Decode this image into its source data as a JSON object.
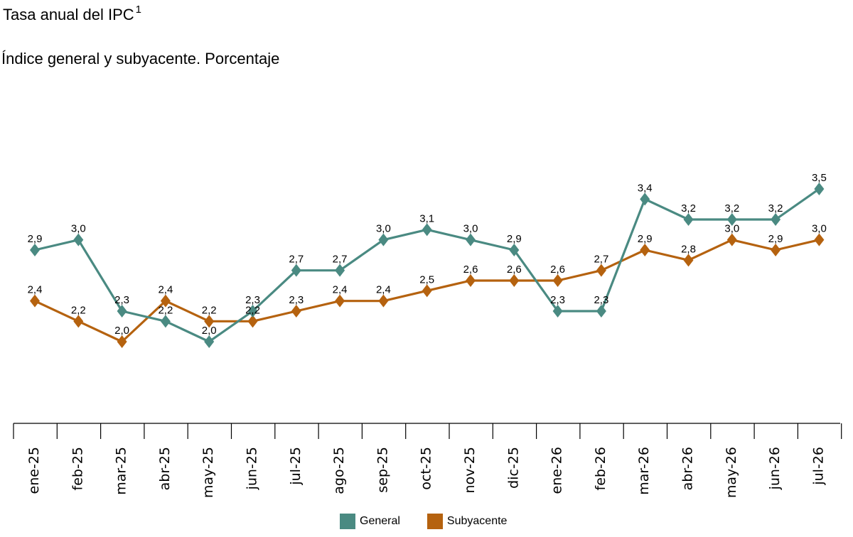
{
  "header": {
    "title": "Tasa anual del IPC",
    "title_footnote": "1",
    "subtitle": "Índice general y subyacente. Porcentaje"
  },
  "colors": {
    "general": "#4a8a82",
    "subyacente": "#b5620f"
  },
  "chart_data": {
    "type": "line",
    "title": "Tasa anual del IPC",
    "subtitle": "Índice general y subyacente. Porcentaje",
    "categories": [
      "ene-25",
      "feb-25",
      "mar-25",
      "abr-25",
      "may-25",
      "jun-25",
      "jul-25",
      "ago-25",
      "sep-25",
      "oct-25",
      "nov-25",
      "dic-25",
      "ene-26",
      "feb-26",
      "mar-26",
      "abr-26",
      "may-26",
      "jun-26",
      "jul-26"
    ],
    "series": [
      {
        "name": "General",
        "color": "#4a8a82",
        "values": [
          2.9,
          3.0,
          2.3,
          2.2,
          2.0,
          2.3,
          2.7,
          2.7,
          3.0,
          3.1,
          3.0,
          2.9,
          2.3,
          2.3,
          3.4,
          3.2,
          3.2,
          3.2,
          3.5
        ],
        "labels": [
          "2,9",
          "3,0",
          "2,3",
          "2,2",
          "2,0",
          "2,3",
          "2,7",
          "2,7",
          "3,0",
          "3,1",
          "3,0",
          "2,9",
          "2,3",
          "2,3",
          "3,4",
          "3,2",
          "3,2",
          "3,2",
          "3,5"
        ]
      },
      {
        "name": "Subyacente",
        "color": "#b5620f",
        "values": [
          2.4,
          2.2,
          2.0,
          2.4,
          2.2,
          2.2,
          2.3,
          2.4,
          2.4,
          2.5,
          2.6,
          2.6,
          2.6,
          2.7,
          2.9,
          2.8,
          3.0,
          2.9,
          3.0
        ],
        "labels": [
          "2,4",
          "2,2",
          "2,0",
          "2,4",
          "2,2",
          "2,2",
          "2,3",
          "2,4",
          "2,4",
          "2,5",
          "2,6",
          "2,6",
          "2,6",
          "2,7",
          "2,9",
          "2,8",
          "3,0",
          "2,9",
          "3,0"
        ]
      }
    ],
    "xlabel": "",
    "ylabel": "",
    "grid": false,
    "legend": "bottom-center"
  }
}
